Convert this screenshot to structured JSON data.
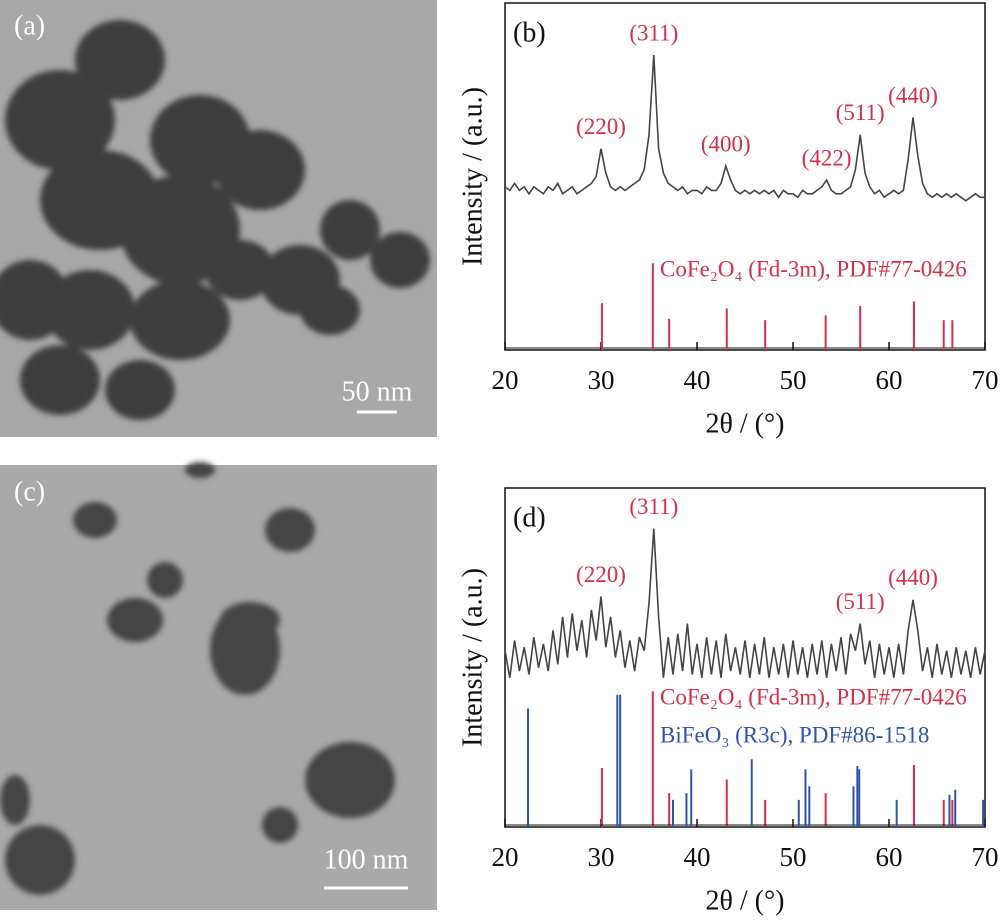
{
  "panels": [
    {
      "label": "(a)",
      "scale_bar": "50 nm"
    },
    {
      "label": "(c)",
      "scale_bar": "100 nm"
    }
  ],
  "chart_data": [
    {
      "type": "line",
      "panel": "(b)",
      "xlabel": "2θ / (°)",
      "ylabel": "Intensity / (a.u.)",
      "xlim": [
        20,
        70
      ],
      "ylim": [
        0,
        100
      ],
      "xticks": [
        20,
        30,
        40,
        50,
        60,
        70
      ],
      "series": [
        {
          "kind": "line",
          "color": "#444444",
          "x": [
            20,
            20.5,
            21,
            21.5,
            22,
            22.5,
            23,
            23.5,
            24,
            24.5,
            25,
            25.5,
            26,
            26.5,
            27,
            27.5,
            28,
            28.5,
            29,
            29.5,
            30,
            30.5,
            31,
            31.5,
            32,
            32.5,
            33,
            33.5,
            34,
            34.5,
            35,
            35.5,
            36,
            36.5,
            37,
            37.5,
            38,
            38.5,
            39,
            39.5,
            40,
            40.5,
            41,
            41.5,
            42,
            42.5,
            43,
            43.5,
            44,
            44.5,
            45,
            45.5,
            46,
            46.5,
            47,
            47.5,
            48,
            48.5,
            49,
            49.5,
            50,
            50.5,
            51,
            51.5,
            52,
            52.5,
            53,
            53.5,
            54,
            54.5,
            55,
            55.5,
            56,
            56.5,
            57,
            57.5,
            58,
            58.5,
            59,
            59.5,
            60,
            60.5,
            61,
            61.5,
            62,
            62.5,
            63,
            63.5,
            64,
            64.5,
            65,
            65.5,
            66,
            66.5,
            67,
            67.5,
            68,
            68.5,
            69,
            69.5,
            70
          ],
          "values": [
            47,
            46,
            48,
            46,
            47,
            45,
            47,
            46,
            45,
            47,
            46,
            48,
            45,
            46,
            47,
            45,
            46,
            47,
            48,
            50,
            58,
            51,
            47,
            46,
            47,
            46,
            47,
            48,
            49,
            52,
            62,
            85,
            58,
            51,
            48,
            47,
            46,
            47,
            45,
            46,
            46,
            45,
            47,
            46,
            46,
            48,
            53,
            49,
            46,
            45,
            46,
            45,
            46,
            45,
            46,
            45,
            46,
            44,
            46,
            45,
            45,
            44,
            46,
            45,
            45,
            46,
            47,
            49,
            46,
            45,
            45,
            46,
            47,
            52,
            62,
            51,
            47,
            45,
            46,
            44,
            45,
            46,
            45,
            46,
            55,
            67,
            56,
            48,
            45,
            44,
            45,
            44,
            45,
            44,
            45,
            44,
            43,
            44,
            45,
            44,
            44
          ]
        },
        {
          "kind": "stick",
          "name": "CoFe₂O₄ (Fd-3m), PDF#77-0426",
          "color": "#d62f4b",
          "x": [
            30.1,
            35.4,
            37.1,
            43.1,
            47.1,
            53.4,
            57.0,
            62.6,
            65.7,
            66.6
          ],
          "values": [
            13.5,
            25,
            9,
            12,
            8.6,
            10,
            12.7,
            14,
            8.6,
            8.6
          ]
        }
      ],
      "annotations": [
        {
          "text": "(220)",
          "x": 30
        },
        {
          "text": "(311)",
          "x": 35.5
        },
        {
          "text": "(400)",
          "x": 43
        },
        {
          "text": "(422)",
          "x": 53.5
        },
        {
          "text": "(511)",
          "x": 57
        },
        {
          "text": "(440)",
          "x": 62.5
        }
      ],
      "annotation_color": "#d62f4b"
    },
    {
      "type": "line",
      "panel": "(d)",
      "xlabel": "2θ / (°)",
      "ylabel": "Intensity / (a.u.)",
      "xlim": [
        20,
        70
      ],
      "ylim": [
        0,
        100
      ],
      "xticks": [
        20,
        30,
        40,
        50,
        60,
        70
      ],
      "series": [
        {
          "kind": "line",
          "color": "#444444",
          "x": [
            20,
            20.5,
            21,
            21.5,
            22,
            22.5,
            23,
            23.5,
            24,
            24.5,
            25,
            25.5,
            26,
            26.5,
            27,
            27.5,
            28,
            28.5,
            29,
            29.5,
            30,
            30.5,
            31,
            31.5,
            32,
            32.5,
            33,
            33.5,
            34,
            34.5,
            35,
            35.5,
            36,
            36.5,
            37,
            37.5,
            38,
            38.5,
            39,
            39.5,
            40,
            40.5,
            41,
            41.5,
            42,
            42.5,
            43,
            43.5,
            44,
            44.5,
            45,
            45.5,
            46,
            46.5,
            47,
            47.5,
            48,
            48.5,
            49,
            49.5,
            50,
            50.5,
            51,
            51.5,
            52,
            52.5,
            53,
            53.5,
            54,
            54.5,
            55,
            55.5,
            56,
            56.5,
            57,
            57.5,
            58,
            58.5,
            59,
            59.5,
            60,
            60.5,
            61,
            61.5,
            62,
            62.5,
            63,
            63.5,
            64,
            64.5,
            65,
            65.5,
            66,
            66.5,
            67,
            67.5,
            68,
            68.5,
            69,
            69.5,
            70
          ],
          "values": [
            52,
            44,
            55,
            46,
            53,
            45,
            56,
            47,
            54,
            46,
            58,
            48,
            62,
            50,
            63,
            52,
            61,
            50,
            64,
            55,
            68,
            53,
            62,
            50,
            58,
            47,
            55,
            46,
            56,
            52,
            66,
            88,
            62,
            44,
            56,
            45,
            57,
            46,
            60,
            45,
            54,
            44,
            56,
            45,
            55,
            44,
            57,
            46,
            53,
            45,
            55,
            44,
            54,
            45,
            56,
            44,
            53,
            45,
            54,
            44,
            55,
            45,
            53,
            44,
            54,
            45,
            55,
            44,
            54,
            46,
            56,
            45,
            57,
            52,
            60,
            48,
            55,
            44,
            54,
            45,
            53,
            44,
            54,
            45,
            58,
            67,
            58,
            46,
            53,
            44,
            54,
            45,
            52,
            44,
            53,
            45,
            52,
            44,
            53,
            45,
            52
          ]
        },
        {
          "kind": "stick",
          "name": "CoFe₂O₄ (Fd-3m), PDF#77-0426",
          "color": "#d62f4b",
          "x": [
            30.1,
            35.4,
            37.1,
            43.1,
            47.1,
            53.4,
            62.6,
            65.7,
            66.6
          ],
          "values": [
            17.4,
            40,
            10,
            14,
            8,
            10,
            18.3,
            8,
            8
          ]
        },
        {
          "kind": "stick",
          "name": "BiFeO₃ (R3c), PDF#86-1518",
          "color": "#2f55a8",
          "x": [
            22.4,
            31.7,
            32.0,
            37.5,
            38.9,
            39.4,
            45.7,
            50.6,
            51.3,
            51.7,
            56.3,
            56.7,
            56.9,
            60.8,
            66.3,
            66.9,
            69.8
          ],
          "values": [
            35,
            39,
            39,
            8,
            10,
            17,
            20,
            8,
            17,
            12,
            12,
            18,
            17,
            8,
            9.5,
            11,
            8
          ]
        }
      ],
      "annotations": [
        {
          "text": "(220)",
          "x": 30
        },
        {
          "text": "(311)",
          "x": 35.5
        },
        {
          "text": "(511)",
          "x": 57
        },
        {
          "text": "(440)",
          "x": 62.5
        }
      ],
      "annotation_color": "#d62f4b"
    }
  ]
}
